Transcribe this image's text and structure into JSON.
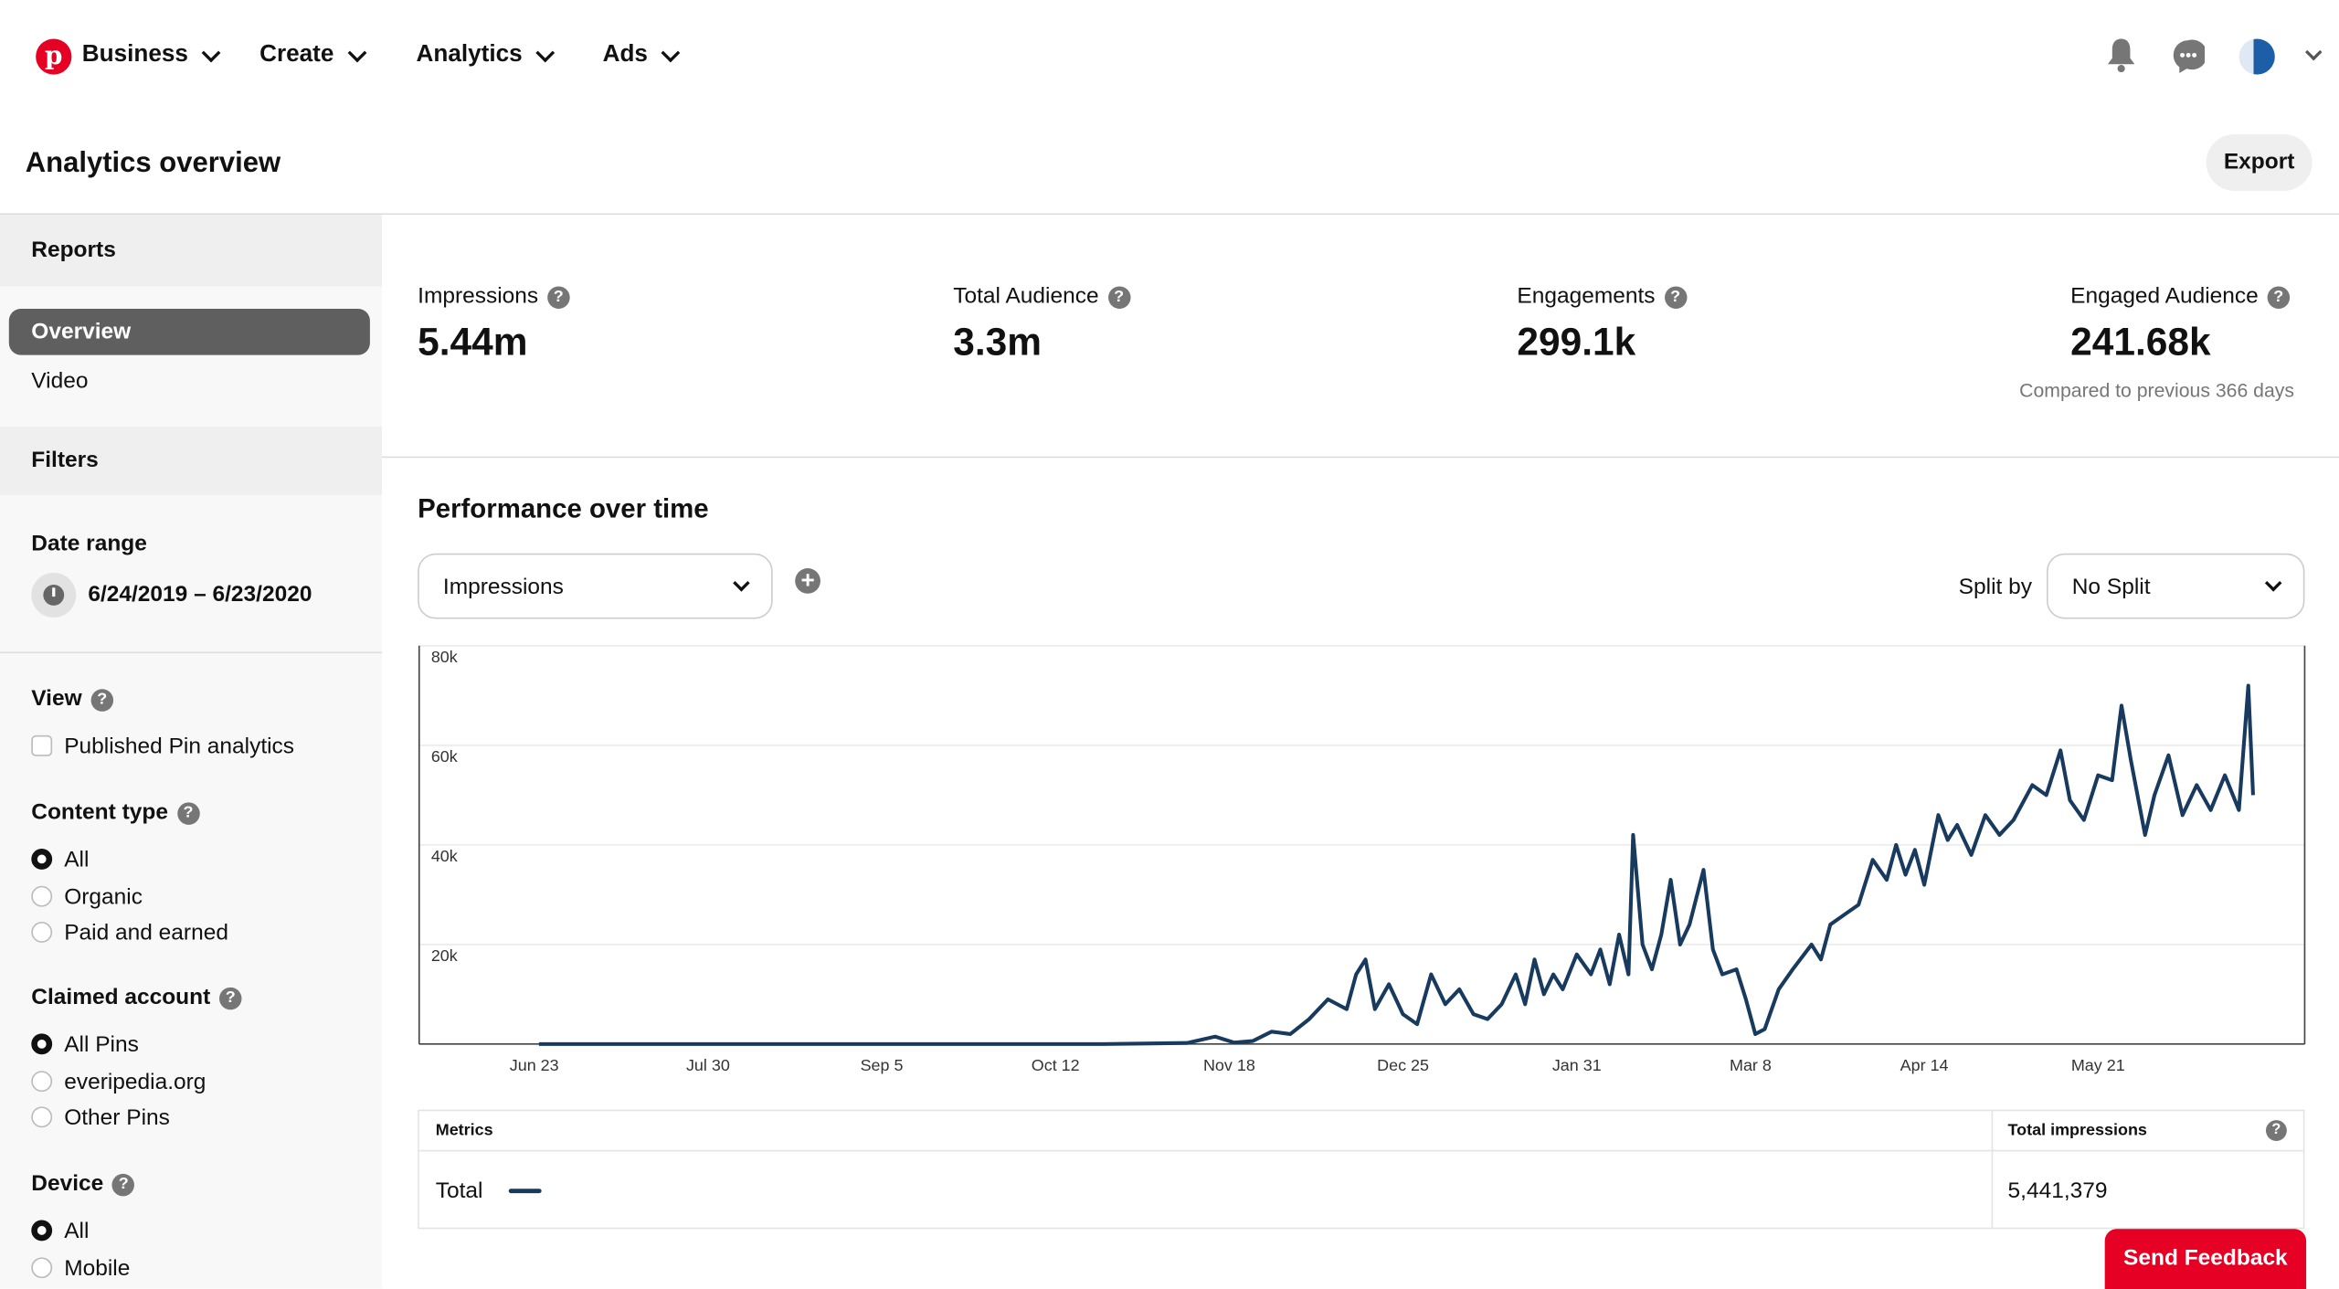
{
  "nav": {
    "brand": "Business",
    "items": [
      "Create",
      "Analytics",
      "Ads"
    ]
  },
  "header": {
    "title": "Analytics overview",
    "export": "Export"
  },
  "sidebar": {
    "reports_title": "Reports",
    "reports": [
      "Overview",
      "Video"
    ],
    "filters_title": "Filters",
    "date_range_label": "Date range",
    "date_range": "6/24/2019 – 6/23/2020",
    "view_label": "View",
    "view_option": "Published Pin analytics",
    "content_type_label": "Content type",
    "content_type": [
      "All",
      "Organic",
      "Paid and earned"
    ],
    "claimed_label": "Claimed account",
    "claimed": [
      "All Pins",
      "everipedia.org",
      "Other Pins"
    ],
    "device_label": "Device",
    "device": [
      "All",
      "Mobile"
    ]
  },
  "metrics": [
    {
      "label": "Impressions",
      "value": "5.44m"
    },
    {
      "label": "Total Audience",
      "value": "3.3m"
    },
    {
      "label": "Engagements",
      "value": "299.1k"
    },
    {
      "label": "Engaged Audience",
      "value": "241.68k"
    }
  ],
  "compared": "Compared to previous 366 days",
  "performance": {
    "title": "Performance over time",
    "metric_select": "Impressions",
    "split_label": "Split by",
    "split_select": "No Split"
  },
  "table": {
    "col1": "Metrics",
    "col2": "Total impressions",
    "row_label": "Total",
    "row_value": "5,441,379"
  },
  "feedback": "Send Feedback",
  "colors": {
    "line": "#173a5e",
    "brand": "#e60023"
  },
  "chart_data": {
    "type": "line",
    "title": "Performance over time",
    "xlabel": "",
    "ylabel": "Impressions",
    "x_unit": "days since 6/24/2019",
    "ylim": [
      0,
      80000
    ],
    "yticks": [
      "20k",
      "40k",
      "60k",
      "80k"
    ],
    "yticks_values": [
      20000,
      40000,
      60000,
      80000
    ],
    "xticks": [
      "Jun 23",
      "Jul 30",
      "Sep 5",
      "Oct 12",
      "Nov 18",
      "Dec 25",
      "Jan 31",
      "Mar 8",
      "Apr 14",
      "May 21"
    ],
    "xticks_values": [
      -1,
      36,
      73,
      110,
      147,
      184,
      221,
      258,
      295,
      332
    ],
    "series": [
      {
        "name": "Total",
        "x": [
          0,
          60,
          120,
          138,
          144,
          148,
          152,
          156,
          160,
          164,
          168,
          172,
          174,
          176,
          178,
          181,
          184,
          187,
          190,
          193,
          196,
          199,
          202,
          205,
          208,
          210,
          212,
          214,
          216,
          218,
          221,
          224,
          226,
          228,
          230,
          232,
          233,
          235,
          237,
          239,
          241,
          243,
          245,
          248,
          250,
          252,
          255,
          257,
          259,
          261,
          264,
          267,
          271,
          273,
          275,
          278,
          281,
          284,
          287,
          289,
          291,
          293,
          295,
          298,
          300,
          302,
          305,
          308,
          311,
          314,
          318,
          321,
          324,
          326,
          329,
          332,
          335,
          337,
          339,
          342,
          344,
          347,
          350,
          353,
          356,
          359,
          362,
          364,
          365
        ],
        "y": [
          0,
          0,
          0,
          200,
          1500,
          300,
          600,
          2500,
          2000,
          5000,
          9000,
          7000,
          14000,
          17000,
          7000,
          12000,
          6000,
          4000,
          14000,
          8000,
          11000,
          6000,
          5000,
          8000,
          14000,
          8000,
          17000,
          10000,
          14000,
          11000,
          18000,
          14000,
          19000,
          12000,
          22000,
          14000,
          42000,
          20000,
          15000,
          22000,
          33000,
          20000,
          24000,
          35000,
          19000,
          14000,
          15000,
          9000,
          2000,
          3000,
          11000,
          15000,
          20000,
          17000,
          24000,
          26000,
          28000,
          37000,
          33000,
          40000,
          34000,
          39000,
          32000,
          46000,
          41000,
          44000,
          38000,
          46000,
          42000,
          45000,
          52000,
          50000,
          59000,
          49000,
          45000,
          54000,
          53000,
          68000,
          57000,
          42000,
          50000,
          58000,
          46000,
          52000,
          47000,
          54000,
          47000,
          72000,
          50000
        ]
      }
    ]
  }
}
